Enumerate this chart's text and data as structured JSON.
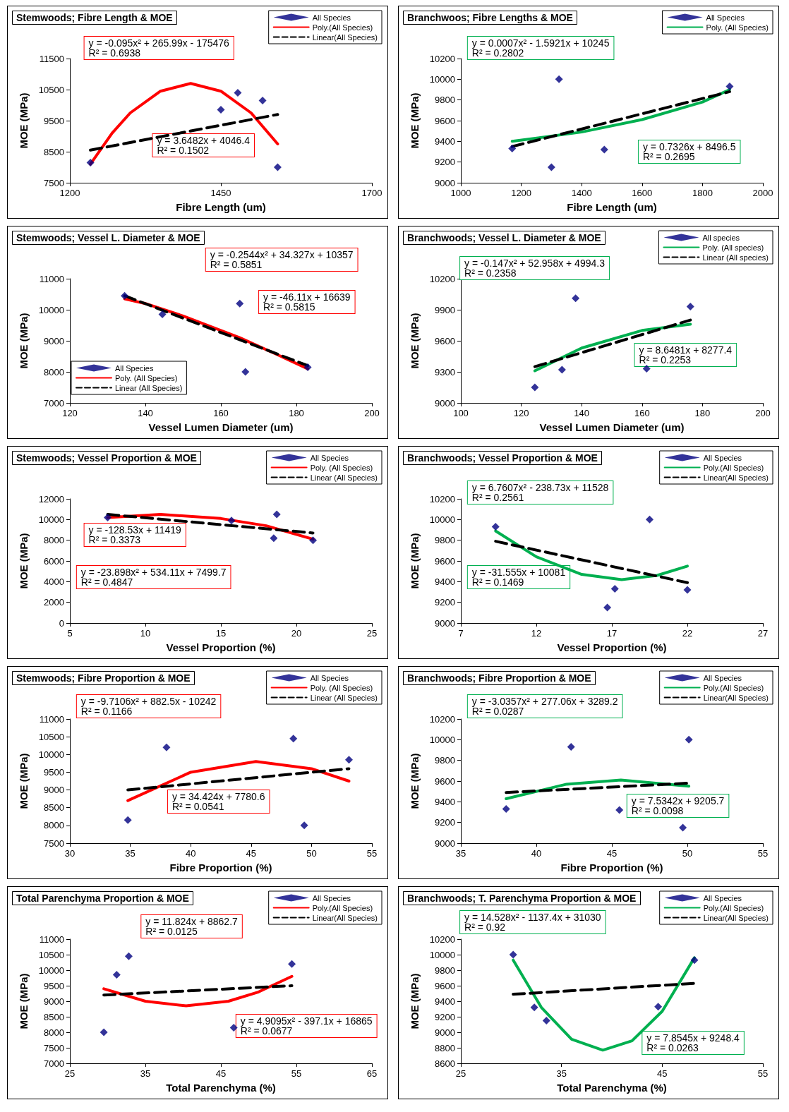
{
  "chart_data": [
    {
      "type": "scatter",
      "title": "Stemwoods; Fibre Length & MOE",
      "xlabel": "Fibre Length (um)",
      "ylabel": "MOE (MPa)",
      "xlim": [
        1200,
        1700
      ],
      "xticks": [
        1200,
        1450,
        1700
      ],
      "ylim": [
        7500,
        11500
      ],
      "yticks": [
        7500,
        8500,
        9500,
        10500,
        11500
      ],
      "legend": "top right",
      "annotations": [
        "y = -0.095x² + 265.99x - 175476\nR² = 0.6938",
        "y = 3.6482x + 4046.4\nR² = 0.1502"
      ],
      "series": [
        {
          "name": "All Species",
          "marker": "diamond",
          "color": "#00007f",
          "x": [
            1234,
            1450,
            1478,
            1519,
            1544
          ],
          "values": [
            8150,
            9850,
            10400,
            10150,
            8000
          ]
        },
        {
          "name": "Poly.(All Species)",
          "type": "line",
          "marker": "none",
          "color": "#ff0000",
          "line_style": "solid",
          "x": [
            1234,
            1270,
            1300,
            1350,
            1400,
            1450,
            1500,
            1544
          ],
          "values": [
            8100,
            9100,
            9750,
            10450,
            10700,
            10450,
            9750,
            8750
          ]
        },
        {
          "name": "Linear(All Species)",
          "type": "line",
          "marker": "none",
          "color": "#000000",
          "line_style": "dashed",
          "x": [
            1234,
            1544
          ],
          "values": [
            8550,
            9700
          ]
        }
      ]
    },
    {
      "type": "scatter",
      "title": "Branchwoos; Fibre Lengths & MOE",
      "xlabel": "Fibre Length (um)",
      "ylabel": "MOE (MPa)",
      "xlim": [
        1000,
        2000
      ],
      "xticks": [
        1000,
        1200,
        1400,
        1600,
        1800,
        2000
      ],
      "ylim": [
        9000,
        10200
      ],
      "yticks": [
        9000,
        9200,
        9400,
        9600,
        9800,
        10000,
        10200
      ],
      "legend": "top right",
      "annotations": [
        "y = 0.0007x² - 1.5921x + 10245\nR² = 0.2802",
        "y = 0.7326x + 8496.5\nR² = 0.2695"
      ],
      "series": [
        {
          "name": "All Species",
          "marker": "diamond",
          "color": "#00007f",
          "x": [
            1170,
            1300,
            1325,
            1475,
            1890
          ],
          "values": [
            9330,
            9150,
            10000,
            9320,
            9930
          ]
        },
        {
          "name": "Poly. (All Species)",
          "type": "line",
          "marker": "none",
          "color": "#00b050",
          "line_style": "solid",
          "x": [
            1170,
            1400,
            1600,
            1800,
            1890
          ],
          "values": [
            9400,
            9490,
            9610,
            9780,
            9900
          ]
        },
        {
          "type": "line",
          "marker": "none",
          "color": "#000000",
          "line_style": "dashed",
          "x": [
            1170,
            1890
          ],
          "values": [
            9350,
            9880
          ]
        }
      ]
    },
    {
      "type": "scatter",
      "title": "Stemwoods; Vessel L. Diameter & MOE",
      "xlabel": "Vessel Lumen Diameter (um)",
      "ylabel": "MOE (MPa)",
      "xlim": [
        120,
        200
      ],
      "xticks": [
        120,
        140,
        160,
        180,
        200
      ],
      "ylim": [
        7000,
        11000
      ],
      "yticks": [
        7000,
        8000,
        9000,
        10000,
        11000
      ],
      "legend": "bottom left",
      "annotations": [
        "y = -0.2544x² + 34.327x + 10357\nR² = 0.5851",
        "y = -46.11x + 16639\nR² = 0.5815"
      ],
      "series": [
        {
          "name": "All Species",
          "marker": "diamond",
          "color": "#00007f",
          "x": [
            134.5,
            144.5,
            165,
            166.5,
            183
          ],
          "values": [
            10450,
            9850,
            10200,
            8000,
            8150
          ]
        },
        {
          "name": "Poly. (All Species)",
          "type": "line",
          "marker": "none",
          "color": "#ff0000",
          "line_style": "solid",
          "x": [
            134.5,
            140,
            150,
            165,
            175,
            183
          ],
          "values": [
            10350,
            10200,
            9800,
            9100,
            8550,
            8100
          ]
        },
        {
          "name": "Linear (All Species)",
          "type": "line",
          "marker": "none",
          "color": "#000000",
          "line_style": "dashed",
          "x": [
            134.5,
            183
          ],
          "values": [
            10450,
            8200
          ]
        }
      ]
    },
    {
      "type": "scatter",
      "title": "Branchwoods; Vessel L. Diameter & MOE",
      "xlabel": "Vessel Lumen Diameter (um)",
      "ylabel": "MOE (MPa)",
      "xlim": [
        100,
        200
      ],
      "xticks": [
        100,
        120,
        140,
        160,
        180,
        200
      ],
      "ylim": [
        9000,
        10200
      ],
      "yticks": [
        9000,
        9300,
        9600,
        9900,
        10200
      ],
      "legend": "top right",
      "annotations": [
        "y = -0.147x² + 52.958x + 4994.3\nR² = 0.2358",
        "y = 8.6481x + 8277.4\nR² = 0.2253"
      ],
      "series": [
        {
          "name": "All species",
          "marker": "diamond",
          "color": "#00007f",
          "x": [
            124.5,
            133.5,
            138,
            161.5,
            176
          ],
          "values": [
            9150,
            9320,
            10010,
            9330,
            9930
          ]
        },
        {
          "name": "Poly. (All species)",
          "type": "line",
          "marker": "none",
          "color": "#00b050",
          "line_style": "solid",
          "x": [
            124.5,
            140,
            160,
            176
          ],
          "values": [
            9310,
            9530,
            9700,
            9760
          ]
        },
        {
          "name": "Linear (All species)",
          "type": "line",
          "marker": "none",
          "color": "#000000",
          "line_style": "dashed",
          "x": [
            124.5,
            176
          ],
          "values": [
            9350,
            9800
          ]
        }
      ]
    },
    {
      "type": "scatter",
      "title": "Stemwoods; Vessel Proportion & MOE",
      "xlabel": "Vessel Proportion (%)",
      "ylabel": "MOE (MPa)",
      "xlim": [
        5,
        25
      ],
      "xticks": [
        5,
        10,
        15,
        20,
        25
      ],
      "ylim": [
        0,
        12000
      ],
      "yticks": [
        0,
        2000,
        4000,
        6000,
        8000,
        10000,
        12000
      ],
      "legend": "top right",
      "annotations": [
        "y = -128.53x + 11419\nR² = 0.3373",
        "y = -23.898x² + 534.11x + 7499.7\nR² = 0.4847"
      ],
      "series": [
        {
          "name": "All Species",
          "marker": "diamond",
          "color": "#00007f",
          "x": [
            7.5,
            15.7,
            18.5,
            18.7,
            21.1
          ],
          "values": [
            10200,
            9900,
            8200,
            10500,
            8000
          ]
        },
        {
          "name": "Poly. (All Species)",
          "type": "line",
          "marker": "none",
          "color": "#ff0000",
          "line_style": "solid",
          "x": [
            7.5,
            11,
            15,
            18,
            21.1
          ],
          "values": [
            10200,
            10500,
            10100,
            9400,
            8100
          ]
        },
        {
          "name": "Linear (All Species)",
          "type": "line",
          "marker": "none",
          "color": "#000000",
          "line_style": "dashed",
          "x": [
            7.5,
            21.1
          ],
          "values": [
            10500,
            8700
          ]
        }
      ]
    },
    {
      "type": "scatter",
      "title": "Branchwoods; Vessel Proportion & MOE",
      "xlabel": "Vessel Proportion (%)",
      "ylabel": "MOE (MPa)",
      "xlim": [
        7,
        27
      ],
      "xticks": [
        7,
        12,
        17,
        22,
        27
      ],
      "ylim": [
        9000,
        10200
      ],
      "yticks": [
        9000,
        9200,
        9400,
        9600,
        9800,
        10000,
        10200
      ],
      "legend": "top right",
      "annotations": [
        "y = 6.7607x² - 238.73x + 11528\nR² = 0.2561",
        "y = -31.555x + 10081\nR² = 0.1469"
      ],
      "series": [
        {
          "name": "All Species",
          "marker": "diamond",
          "color": "#00007f",
          "x": [
            9.3,
            16.7,
            17.2,
            19.5,
            22
          ],
          "values": [
            9930,
            9150,
            9330,
            10000,
            9320
          ]
        },
        {
          "name": "Poly.(All Species)",
          "type": "line",
          "marker": "none",
          "color": "#00b050",
          "line_style": "solid",
          "x": [
            9.3,
            12,
            15,
            17.65,
            20,
            22
          ],
          "values": [
            9890,
            9640,
            9470,
            9420,
            9460,
            9550
          ]
        },
        {
          "name": "Linear(All Species)",
          "type": "line",
          "marker": "none",
          "color": "#000000",
          "line_style": "dashed",
          "x": [
            9.3,
            22
          ],
          "values": [
            9790,
            9390
          ]
        }
      ]
    },
    {
      "type": "scatter",
      "title": "Stemwoods; Fibre Proportion & MOE",
      "xlabel": "Fibre Proportion (%)",
      "ylabel": "MOE (MPa)",
      "xlim": [
        30,
        55
      ],
      "xticks": [
        30,
        35,
        40,
        45,
        50,
        55
      ],
      "ylim": [
        7500,
        11000
      ],
      "yticks": [
        7500,
        8000,
        8500,
        9000,
        9500,
        10000,
        10500,
        11000
      ],
      "legend": "top right",
      "annotations": [
        "y = -9.7106x² + 882.5x - 10242\nR² = 0.1166",
        "y = 34.424x + 7780.6\nR² = 0.0541"
      ],
      "series": [
        {
          "name": "All Species",
          "marker": "diamond",
          "color": "#00007f",
          "x": [
            34.8,
            38,
            48.5,
            49.4,
            53.1
          ],
          "values": [
            8150,
            10200,
            10450,
            8000,
            9850
          ]
        },
        {
          "name": "Poly. (All Species)",
          "type": "line",
          "marker": "none",
          "color": "#ff0000",
          "line_style": "solid",
          "x": [
            34.8,
            40,
            45.4,
            50,
            53.1
          ],
          "values": [
            8700,
            9500,
            9800,
            9600,
            9250
          ]
        },
        {
          "name": "Linear (All Species)",
          "type": "line",
          "marker": "none",
          "color": "#000000",
          "line_style": "dashed",
          "x": [
            34.8,
            53.1
          ],
          "values": [
            9000,
            9600
          ]
        }
      ]
    },
    {
      "type": "scatter",
      "title": "Branchwoods; Fibre Proportion & MOE",
      "xlabel": "Fibre Proportion (%)",
      "ylabel": "MOE (MPa)",
      "xlim": [
        35,
        55
      ],
      "xticks": [
        35,
        40,
        45,
        50,
        55
      ],
      "ylim": [
        9000,
        10200
      ],
      "yticks": [
        9000,
        9200,
        9400,
        9600,
        9800,
        10000,
        10200
      ],
      "legend": "top right",
      "annotations": [
        "y = -3.0357x² + 277.06x + 3289.2\nR² = 0.0287",
        "y = 7.5342x + 9205.7\nR² = 0.0098"
      ],
      "series": [
        {
          "name": "All Species",
          "marker": "diamond",
          "color": "#00007f",
          "x": [
            38,
            42.3,
            45.5,
            49.7,
            50.1
          ],
          "values": [
            9330,
            9930,
            9320,
            9150,
            10000
          ]
        },
        {
          "name": "Poly.(All Species)",
          "type": "line",
          "marker": "none",
          "color": "#00b050",
          "line_style": "solid",
          "x": [
            38,
            42,
            45.6,
            50.1
          ],
          "values": [
            9430,
            9570,
            9610,
            9550
          ]
        },
        {
          "name": "Linear(All Species)",
          "type": "line",
          "marker": "none",
          "color": "#000000",
          "line_style": "dashed",
          "x": [
            38,
            50.1
          ],
          "values": [
            9490,
            9580
          ]
        }
      ]
    },
    {
      "type": "scatter",
      "title": "Total Parenchyma Proportion & MOE",
      "xlabel": "Total Parenchyma (%)",
      "ylabel": "MOE (MPa)",
      "xlim": [
        25,
        65
      ],
      "xticks": [
        25,
        35,
        45,
        55,
        65
      ],
      "ylim": [
        7000,
        11000
      ],
      "yticks": [
        7000,
        7500,
        8000,
        8500,
        9000,
        9500,
        10000,
        10500,
        11000
      ],
      "legend": "top right",
      "annotations": [
        "y = 11.824x + 8862.7\nR² = 0.0125",
        "y = 4.9095x² - 397.1x + 16865\nR² = 0.0677"
      ],
      "series": [
        {
          "name": "All Species",
          "marker": "diamond",
          "color": "#00007f",
          "x": [
            29.5,
            31.2,
            32.8,
            46.7,
            54.4
          ],
          "values": [
            8000,
            9850,
            10450,
            8150,
            10200
          ]
        },
        {
          "name": "Poly.(All Species)",
          "type": "line",
          "marker": "none",
          "color": "#ff0000",
          "line_style": "solid",
          "x": [
            29.5,
            35,
            40.4,
            46,
            50,
            54.4
          ],
          "values": [
            9400,
            9000,
            8850,
            9000,
            9300,
            9800
          ]
        },
        {
          "name": "Linear(All Species)",
          "type": "line",
          "marker": "none",
          "color": "#000000",
          "line_style": "dashed",
          "x": [
            29.5,
            54.4
          ],
          "values": [
            9200,
            9500
          ]
        }
      ]
    },
    {
      "type": "scatter",
      "title": "Branchwoods; T. Parenchyma Proportion & MOE",
      "xlabel": "Total Parenchyma (%)",
      "ylabel": "MOE (MPa)",
      "xlim": [
        25,
        55
      ],
      "xticks": [
        25,
        35,
        45,
        55
      ],
      "ylim": [
        8600,
        10200
      ],
      "yticks": [
        8600,
        8800,
        9000,
        9200,
        9400,
        9600,
        9800,
        10000,
        10200
      ],
      "legend": "top right",
      "annotations": [
        "y = 14.528x² - 1137.4x + 31030\nR² = 0.92",
        "y = 7.8545x + 9248.4\nR² = 0.0263"
      ],
      "series": [
        {
          "name": "All Species",
          "marker": "diamond",
          "color": "#00007f",
          "x": [
            30.2,
            32.3,
            33.5,
            44.6,
            48.2
          ],
          "values": [
            10000,
            9320,
            9150,
            9330,
            9930
          ]
        },
        {
          "name": "Poly.(All Species)",
          "type": "line",
          "marker": "none",
          "color": "#00b050",
          "line_style": "solid",
          "x": [
            30.2,
            33,
            36,
            39.1,
            42,
            45,
            48.2
          ],
          "values": [
            9930,
            9320,
            8910,
            8770,
            8890,
            9270,
            9960
          ]
        },
        {
          "name": "Linear(All Species)",
          "type": "line",
          "marker": "none",
          "color": "#000000",
          "line_style": "dashed",
          "x": [
            30.2,
            48.2
          ],
          "values": [
            9490,
            9630
          ]
        }
      ]
    }
  ]
}
